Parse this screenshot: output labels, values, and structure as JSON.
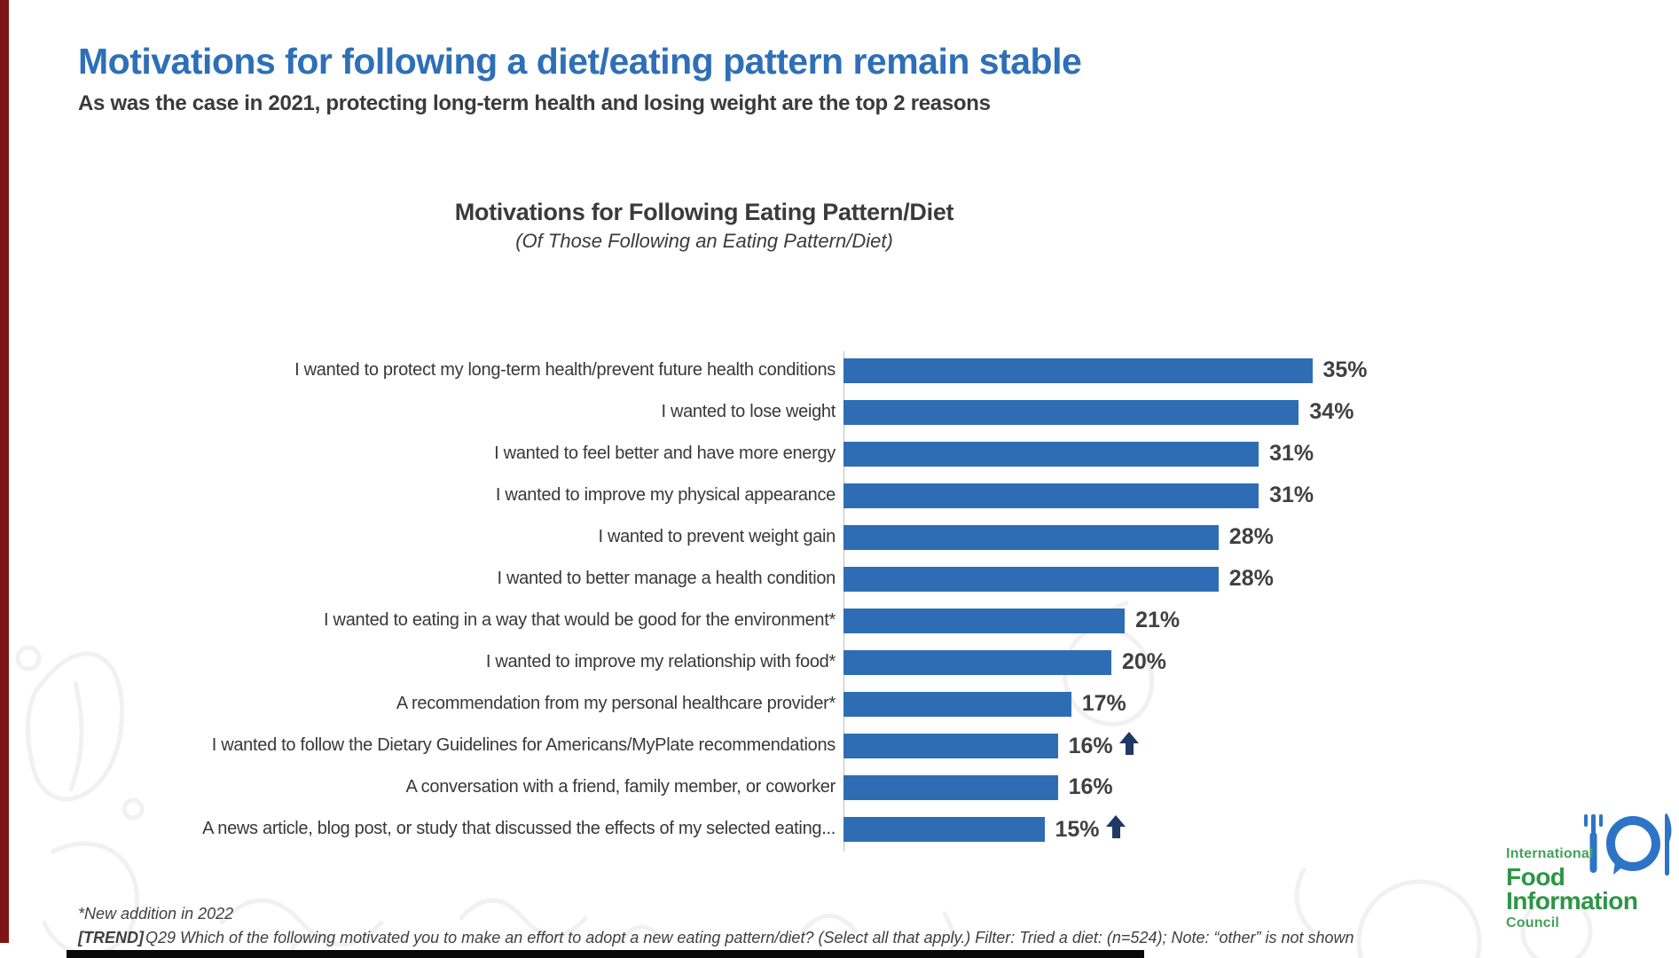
{
  "slide": {
    "title": "Motivations for following a diet/eating pattern remain stable",
    "subtitle": "As was the case in 2021, protecting long-term health and losing weight are the top 2 reasons"
  },
  "chart_data": {
    "type": "bar",
    "orientation": "horizontal",
    "title": "Motivations for Following Eating Pattern/Diet",
    "subtitle": "(Of Those Following an Eating Pattern/Diet)",
    "categories": [
      "I wanted to protect my long-term health/prevent future health conditions",
      "I wanted to lose weight",
      "I wanted to feel better and have more energy",
      "I wanted to improve my physical appearance",
      "I wanted to prevent weight gain",
      "I wanted to better manage a health condition",
      "I wanted to eating in a way that would be good for the environment*",
      "I wanted to improve my relationship with food*",
      "A recommendation from my personal healthcare provider*",
      "I wanted to follow the Dietary Guidelines for Americans/MyPlate recommendations",
      "A conversation with a friend, family member, or coworker",
      "A news article, blog post, or study that discussed the effects of my selected eating..."
    ],
    "values": [
      35,
      34,
      31,
      31,
      28,
      28,
      21,
      20,
      17,
      16,
      16,
      15
    ],
    "trend_up": [
      false,
      false,
      false,
      false,
      false,
      false,
      false,
      false,
      false,
      true,
      false,
      true
    ],
    "unit": "%",
    "xlim": [
      0,
      37
    ],
    "grid": false,
    "legend": "none",
    "bar_color": "#2e6db4",
    "arrow_color": "#1f3864"
  },
  "footnotes": {
    "note1": "*New addition in 2022",
    "trend_tag": "[TREND]",
    "note2": "Q29 Which of the following motivated you to make an effort to adopt a new eating pattern/diet? (Select all that apply.) Filter: Tried a diet: (n=524); Note: “other” is not shown"
  },
  "logo": {
    "line1": "International",
    "line2": "Food",
    "line3": "Information",
    "line4": "Council"
  },
  "colors": {
    "title_blue": "#2e6fb7",
    "text_dark": "#3a3a3a",
    "bar_blue": "#2e6db4",
    "arrow_navy": "#1f3864",
    "logo_green": "#2c9646",
    "logo_icon_blue": "#2e74c6",
    "left_stripe_red": "#7d1416"
  }
}
